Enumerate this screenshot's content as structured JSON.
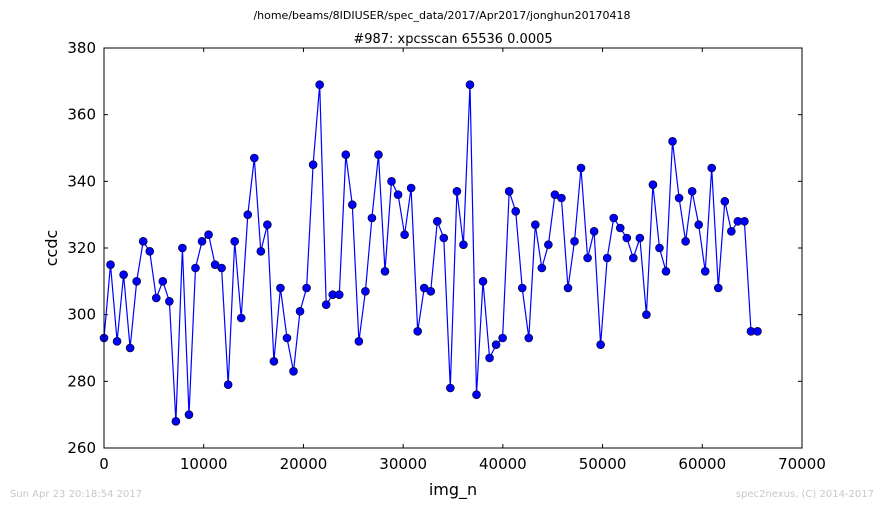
{
  "suptitle": "/home/beams/8IDIUSER/spec_data/2017/Apr2017/jonghun20170418",
  "footer_left": "Sun Apr 23 20:18:54 2017",
  "footer_right": "spec2nexus, (C) 2014-2017",
  "chart_data": {
    "type": "line",
    "title": "#987: xpcsscan 65536 0.0005",
    "xlabel": "img_n",
    "ylabel": "ccdc",
    "xlim": [
      0,
      70000
    ],
    "ylim": [
      260,
      380
    ],
    "xticks": [
      0,
      10000,
      20000,
      30000,
      40000,
      50000,
      60000,
      70000
    ],
    "yticks": [
      260,
      280,
      300,
      320,
      340,
      360,
      380
    ],
    "xtick_labels": [
      "0",
      "10000",
      "20000",
      "30000",
      "40000",
      "50000",
      "60000",
      "70000"
    ],
    "ytick_labels": [
      "260",
      "280",
      "300",
      "320",
      "340",
      "360",
      "380"
    ],
    "grid": false,
    "legend": "none",
    "color": "#0000ff",
    "marker": "circle",
    "series": [
      {
        "x": [
          0,
          655,
          1311,
          1966,
          2621,
          3277,
          3932,
          4588,
          5243,
          5898,
          6554,
          7209,
          7864,
          8520,
          9175,
          9830,
          10486,
          11141,
          11796,
          12452,
          13107,
          13763,
          14418,
          15073,
          15729,
          16384,
          17039,
          17695,
          18350,
          19005,
          19661,
          20316,
          20972,
          21627,
          22282,
          22938,
          23593,
          24248,
          24904,
          25559,
          26214,
          26870,
          27525,
          28180,
          28836,
          29491,
          30147,
          30802,
          31457,
          32113,
          32768,
          33423,
          34079,
          34734,
          35389,
          36045,
          36700,
          37356,
          38011,
          38666,
          39322,
          39977,
          40632,
          41288,
          41943,
          42598,
          43254,
          43909,
          44564,
          45220,
          45875,
          46531,
          47186,
          47841,
          48497,
          49152,
          49807,
          50463,
          51118,
          51773,
          52429,
          53084,
          53740,
          54395,
          55050,
          55706,
          56361,
          57016,
          57672,
          58327,
          58982,
          59638,
          60293,
          60948,
          61604,
          62259,
          62915,
          63570,
          64225,
          64881,
          65536
        ],
        "y": [
          293,
          315,
          292,
          312,
          290,
          310,
          322,
          319,
          305,
          310,
          304,
          268,
          320,
          270,
          314,
          322,
          324,
          315,
          314,
          279,
          322,
          299,
          330,
          347,
          319,
          327,
          286,
          308,
          293,
          283,
          301,
          308,
          345,
          369,
          303,
          306,
          306,
          348,
          333,
          292,
          307,
          329,
          348,
          313,
          340,
          336,
          324,
          338,
          295,
          308,
          307,
          328,
          323,
          278,
          337,
          321,
          369,
          276,
          310,
          287,
          291,
          293,
          337,
          331,
          308,
          293,
          327,
          314,
          321,
          336,
          335,
          308,
          322,
          344,
          317,
          325,
          291,
          317,
          329,
          326,
          323,
          317,
          323,
          300,
          339,
          320,
          313,
          352,
          335,
          322,
          337,
          327,
          313,
          344,
          308,
          334,
          325,
          328,
          328,
          295,
          295
        ]
      }
    ]
  }
}
